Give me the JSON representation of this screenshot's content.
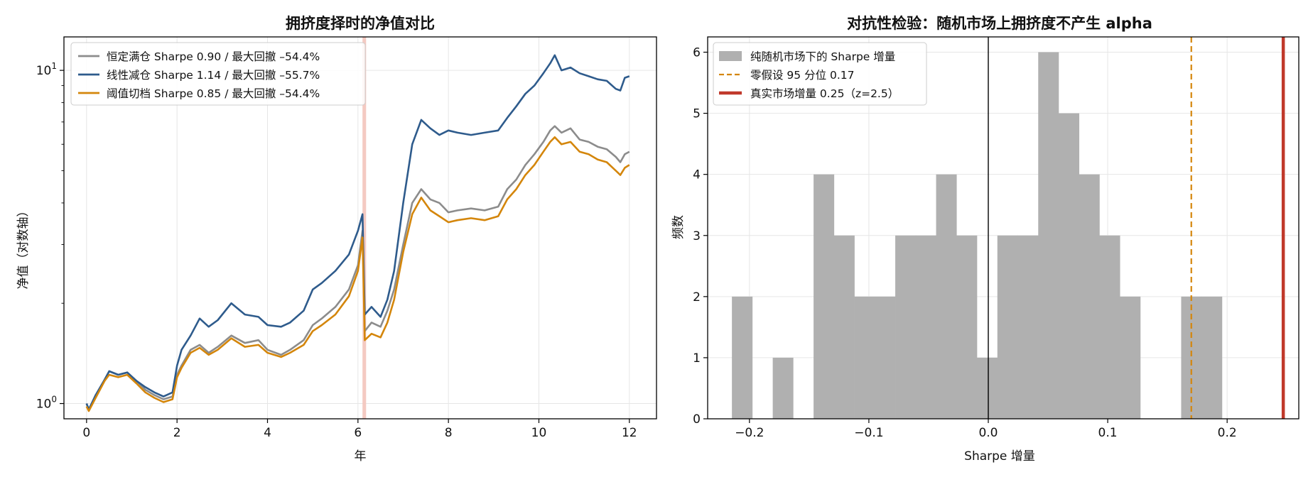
{
  "chart_data": [
    {
      "type": "line",
      "title": "拥挤度择时的净值对比",
      "xlabel": "年",
      "ylabel": "净值（对数轴）",
      "yscale": "log",
      "xlim": [
        -0.5,
        12.6
      ],
      "ylim": [
        0.9,
        12.6
      ],
      "xticks": [
        0,
        2,
        4,
        6,
        8,
        10,
        12
      ],
      "ytick_labels": [
        {
          "value": 1,
          "base": "10",
          "exp": "0"
        },
        {
          "value": 10,
          "base": "10",
          "exp": "1"
        }
      ],
      "grid": true,
      "legend_position": "upper-left",
      "highlight_band": {
        "x_from": 6.1,
        "x_to": 6.18,
        "color": "#f3c4bb"
      },
      "series": [
        {
          "name": "恒定满仓",
          "label": "恒定满仓  Sharpe 0.90 / 最大回撤 –54.4%",
          "color": "#8c8c8c",
          "points": [
            [
              0,
              1.0
            ],
            [
              0.05,
              0.96
            ],
            [
              0.2,
              1.05
            ],
            [
              0.4,
              1.18
            ],
            [
              0.5,
              1.25
            ],
            [
              0.7,
              1.22
            ],
            [
              0.9,
              1.24
            ],
            [
              1.1,
              1.17
            ],
            [
              1.3,
              1.1
            ],
            [
              1.5,
              1.06
            ],
            [
              1.7,
              1.03
            ],
            [
              1.9,
              1.05
            ],
            [
              2.0,
              1.22
            ],
            [
              2.1,
              1.3
            ],
            [
              2.3,
              1.45
            ],
            [
              2.5,
              1.5
            ],
            [
              2.7,
              1.42
            ],
            [
              2.9,
              1.48
            ],
            [
              3.2,
              1.6
            ],
            [
              3.5,
              1.52
            ],
            [
              3.8,
              1.55
            ],
            [
              4.0,
              1.45
            ],
            [
              4.3,
              1.4
            ],
            [
              4.5,
              1.45
            ],
            [
              4.8,
              1.55
            ],
            [
              5.0,
              1.72
            ],
            [
              5.2,
              1.8
            ],
            [
              5.5,
              1.95
            ],
            [
              5.8,
              2.2
            ],
            [
              6.0,
              2.6
            ],
            [
              6.1,
              3.3
            ],
            [
              6.15,
              1.65
            ],
            [
              6.3,
              1.75
            ],
            [
              6.5,
              1.7
            ],
            [
              6.65,
              1.9
            ],
            [
              6.8,
              2.2
            ],
            [
              7.0,
              3.0
            ],
            [
              7.2,
              4.0
            ],
            [
              7.4,
              4.4
            ],
            [
              7.6,
              4.1
            ],
            [
              7.8,
              4.0
            ],
            [
              8.0,
              3.75
            ],
            [
              8.2,
              3.8
            ],
            [
              8.5,
              3.85
            ],
            [
              8.8,
              3.8
            ],
            [
              9.1,
              3.9
            ],
            [
              9.3,
              4.4
            ],
            [
              9.5,
              4.7
            ],
            [
              9.7,
              5.2
            ],
            [
              9.9,
              5.6
            ],
            [
              10.1,
              6.1
            ],
            [
              10.25,
              6.6
            ],
            [
              10.35,
              6.8
            ],
            [
              10.5,
              6.5
            ],
            [
              10.7,
              6.7
            ],
            [
              10.9,
              6.2
            ],
            [
              11.1,
              6.1
            ],
            [
              11.3,
              5.9
            ],
            [
              11.5,
              5.8
            ],
            [
              11.7,
              5.5
            ],
            [
              11.8,
              5.3
            ],
            [
              11.9,
              5.6
            ],
            [
              12.0,
              5.7
            ]
          ]
        },
        {
          "name": "线性减仓",
          "label": "线性减仓  Sharpe 1.14 / 最大回撤 –55.7%",
          "color": "#2e5b8c",
          "points": [
            [
              0,
              1.0
            ],
            [
              0.05,
              0.96
            ],
            [
              0.2,
              1.06
            ],
            [
              0.4,
              1.18
            ],
            [
              0.5,
              1.25
            ],
            [
              0.7,
              1.22
            ],
            [
              0.9,
              1.24
            ],
            [
              1.1,
              1.17
            ],
            [
              1.3,
              1.12
            ],
            [
              1.5,
              1.08
            ],
            [
              1.7,
              1.05
            ],
            [
              1.9,
              1.08
            ],
            [
              2.0,
              1.3
            ],
            [
              2.1,
              1.45
            ],
            [
              2.3,
              1.6
            ],
            [
              2.5,
              1.8
            ],
            [
              2.7,
              1.7
            ],
            [
              2.9,
              1.78
            ],
            [
              3.2,
              2.0
            ],
            [
              3.5,
              1.85
            ],
            [
              3.8,
              1.82
            ],
            [
              4.0,
              1.72
            ],
            [
              4.3,
              1.7
            ],
            [
              4.5,
              1.75
            ],
            [
              4.8,
              1.9
            ],
            [
              5.0,
              2.2
            ],
            [
              5.2,
              2.3
            ],
            [
              5.5,
              2.5
            ],
            [
              5.8,
              2.8
            ],
            [
              6.0,
              3.3
            ],
            [
              6.1,
              3.7
            ],
            [
              6.15,
              1.85
            ],
            [
              6.3,
              1.95
            ],
            [
              6.5,
              1.82
            ],
            [
              6.65,
              2.05
            ],
            [
              6.8,
              2.5
            ],
            [
              7.0,
              4.0
            ],
            [
              7.2,
              6.0
            ],
            [
              7.4,
              7.1
            ],
            [
              7.6,
              6.7
            ],
            [
              7.8,
              6.4
            ],
            [
              8.0,
              6.6
            ],
            [
              8.2,
              6.5
            ],
            [
              8.5,
              6.4
            ],
            [
              8.8,
              6.5
            ],
            [
              9.1,
              6.6
            ],
            [
              9.3,
              7.2
            ],
            [
              9.5,
              7.8
            ],
            [
              9.7,
              8.5
            ],
            [
              9.9,
              9.0
            ],
            [
              10.1,
              9.8
            ],
            [
              10.25,
              10.5
            ],
            [
              10.35,
              11.1
            ],
            [
              10.5,
              10.0
            ],
            [
              10.7,
              10.2
            ],
            [
              10.9,
              9.8
            ],
            [
              11.1,
              9.6
            ],
            [
              11.3,
              9.4
            ],
            [
              11.5,
              9.3
            ],
            [
              11.7,
              8.8
            ],
            [
              11.8,
              8.7
            ],
            [
              11.9,
              9.5
            ],
            [
              12.0,
              9.6
            ]
          ]
        },
        {
          "name": "阈值切档",
          "label": "阈值切档  Sharpe 0.85 / 最大回撤 –54.4%",
          "color": "#d4860b",
          "points": [
            [
              0,
              0.98
            ],
            [
              0.05,
              0.95
            ],
            [
              0.2,
              1.04
            ],
            [
              0.4,
              1.17
            ],
            [
              0.5,
              1.22
            ],
            [
              0.7,
              1.2
            ],
            [
              0.9,
              1.22
            ],
            [
              1.1,
              1.15
            ],
            [
              1.3,
              1.08
            ],
            [
              1.5,
              1.04
            ],
            [
              1.7,
              1.01
            ],
            [
              1.9,
              1.03
            ],
            [
              2.0,
              1.2
            ],
            [
              2.1,
              1.28
            ],
            [
              2.3,
              1.42
            ],
            [
              2.5,
              1.47
            ],
            [
              2.7,
              1.4
            ],
            [
              2.9,
              1.45
            ],
            [
              3.2,
              1.57
            ],
            [
              3.5,
              1.48
            ],
            [
              3.8,
              1.5
            ],
            [
              4.0,
              1.42
            ],
            [
              4.3,
              1.38
            ],
            [
              4.5,
              1.42
            ],
            [
              4.8,
              1.5
            ],
            [
              5.0,
              1.65
            ],
            [
              5.2,
              1.72
            ],
            [
              5.5,
              1.85
            ],
            [
              5.8,
              2.1
            ],
            [
              6.0,
              2.5
            ],
            [
              6.1,
              3.15
            ],
            [
              6.15,
              1.55
            ],
            [
              6.3,
              1.62
            ],
            [
              6.5,
              1.58
            ],
            [
              6.65,
              1.75
            ],
            [
              6.8,
              2.05
            ],
            [
              7.0,
              2.85
            ],
            [
              7.2,
              3.7
            ],
            [
              7.4,
              4.15
            ],
            [
              7.6,
              3.8
            ],
            [
              7.8,
              3.65
            ],
            [
              8.0,
              3.5
            ],
            [
              8.2,
              3.55
            ],
            [
              8.5,
              3.6
            ],
            [
              8.8,
              3.55
            ],
            [
              9.1,
              3.65
            ],
            [
              9.3,
              4.1
            ],
            [
              9.5,
              4.4
            ],
            [
              9.7,
              4.85
            ],
            [
              9.9,
              5.2
            ],
            [
              10.1,
              5.7
            ],
            [
              10.25,
              6.1
            ],
            [
              10.35,
              6.3
            ],
            [
              10.5,
              6.0
            ],
            [
              10.7,
              6.1
            ],
            [
              10.9,
              5.7
            ],
            [
              11.1,
              5.6
            ],
            [
              11.3,
              5.4
            ],
            [
              11.5,
              5.3
            ],
            [
              11.7,
              5.0
            ],
            [
              11.8,
              4.85
            ],
            [
              11.9,
              5.1
            ],
            [
              12.0,
              5.2
            ]
          ]
        }
      ]
    },
    {
      "type": "histogram",
      "title": "对抗性检验：随机市场上拥挤度不产生 alpha",
      "xlabel": "Sharpe 增量",
      "ylabel": "频数",
      "xlim": [
        -0.235,
        0.26
      ],
      "ylim": [
        0,
        6.25
      ],
      "xticks": [
        -0.2,
        -0.1,
        0.0,
        0.1,
        0.2
      ],
      "xtick_labels": [
        "−0.2",
        "−0.1",
        "0.0",
        "0.1",
        "0.2"
      ],
      "yticks": [
        0,
        1,
        2,
        3,
        4,
        5,
        6
      ],
      "grid": true,
      "legend_position": "upper-left",
      "bar_color": "#b0b0b0",
      "bars": [
        {
          "x0": -0.2147,
          "x1": -0.1976,
          "count": 2
        },
        {
          "x0": -0.1976,
          "x1": -0.1805,
          "count": 0
        },
        {
          "x0": -0.1805,
          "x1": -0.1634,
          "count": 1
        },
        {
          "x0": -0.1634,
          "x1": -0.1463,
          "count": 0
        },
        {
          "x0": -0.1463,
          "x1": -0.1292,
          "count": 4
        },
        {
          "x0": -0.1292,
          "x1": -0.1121,
          "count": 3
        },
        {
          "x0": -0.1121,
          "x1": -0.095,
          "count": 2
        },
        {
          "x0": -0.095,
          "x1": -0.0779,
          "count": 2
        },
        {
          "x0": -0.0779,
          "x1": -0.0608,
          "count": 3
        },
        {
          "x0": -0.0608,
          "x1": -0.0437,
          "count": 3
        },
        {
          "x0": -0.0437,
          "x1": -0.0266,
          "count": 4
        },
        {
          "x0": -0.0266,
          "x1": -0.0095,
          "count": 3
        },
        {
          "x0": -0.0095,
          "x1": 0.0076,
          "count": 1
        },
        {
          "x0": 0.0076,
          "x1": 0.0247,
          "count": 3
        },
        {
          "x0": 0.0247,
          "x1": 0.0418,
          "count": 3
        },
        {
          "x0": 0.0418,
          "x1": 0.0589,
          "count": 6
        },
        {
          "x0": 0.0589,
          "x1": 0.076,
          "count": 5
        },
        {
          "x0": 0.076,
          "x1": 0.0931,
          "count": 4
        },
        {
          "x0": 0.0931,
          "x1": 0.1102,
          "count": 3
        },
        {
          "x0": 0.1102,
          "x1": 0.1273,
          "count": 2
        },
        {
          "x0": 0.1273,
          "x1": 0.1444,
          "count": 0
        },
        {
          "x0": 0.1444,
          "x1": 0.1615,
          "count": 0
        },
        {
          "x0": 0.1615,
          "x1": 0.1786,
          "count": 2
        },
        {
          "x0": 0.1786,
          "x1": 0.1957,
          "count": 2
        }
      ],
      "reference_lines": [
        {
          "name": "zero",
          "x": 0.0,
          "color": "#000000",
          "style": "solid"
        },
        {
          "name": "null-95-quantile",
          "x": 0.17,
          "color": "#d4860b",
          "style": "dashed"
        },
        {
          "name": "real-market-increment",
          "x": 0.247,
          "color": "#c0392b",
          "style": "solid-thick"
        }
      ],
      "legend": [
        {
          "label": "纯随机市场下的 Sharpe 增量",
          "kind": "patch",
          "color": "#b0b0b0"
        },
        {
          "label": "零假设 95 分位 0.17",
          "kind": "dashed",
          "color": "#d4860b"
        },
        {
          "label": "真实市场增量 0.25（z=2.5）",
          "kind": "thick",
          "color": "#c0392b"
        }
      ]
    }
  ]
}
